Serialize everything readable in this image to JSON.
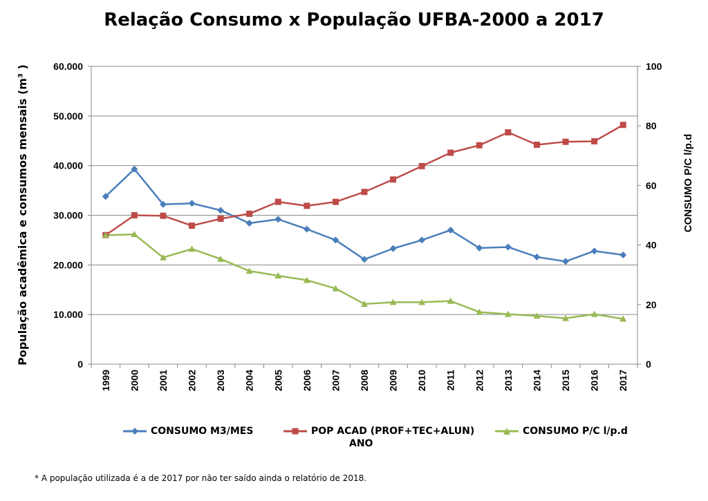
{
  "title": "Relação Consumo x População UFBA-2000 a 2017",
  "footnote": "* A população utilizada é a de 2017 por não ter saído ainda o relatório de 2018.",
  "chart_data": {
    "type": "line",
    "title": "Relação Consumo x População UFBA-2000 a 2017",
    "xlabel": "ANO",
    "ylabel": "População acadêmica e consumos mensais  (m³ )",
    "y2label": "CONSUMO P/C l/p.d",
    "categories": [
      "1999",
      "2000",
      "2001",
      "2002",
      "2003",
      "2004",
      "2005",
      "2006",
      "2007",
      "2008",
      "2009",
      "2010",
      "2011",
      "2012",
      "2013",
      "2014",
      "2015",
      "2016",
      "2017"
    ],
    "ylim": [
      0,
      60000
    ],
    "y2lim": [
      0,
      100
    ],
    "yticks": [
      "0",
      "10.000",
      "20.000",
      "30.000",
      "40.000",
      "50.000",
      "60.000"
    ],
    "y2ticks": [
      "0",
      "20",
      "40",
      "60",
      "80",
      "100"
    ],
    "grid": true,
    "legend_position": "bottom",
    "series": [
      {
        "name": "CONSUMO M3/MES",
        "axis": "left",
        "color": "#4A7EBB",
        "marker": "diamond",
        "values": [
          33800,
          39300,
          32200,
          32400,
          31000,
          28400,
          29200,
          27200,
          25000,
          21100,
          23300,
          25000,
          27000,
          23400,
          23600,
          21600,
          20700,
          22800,
          22000
        ]
      },
      {
        "name": "POP ACAD (PROF+TEC+ALUN)",
        "axis": "left",
        "color": "#BE4B48",
        "marker": "square",
        "values": [
          26000,
          30000,
          29900,
          27900,
          29300,
          30300,
          32700,
          31900,
          32700,
          34700,
          37200,
          39900,
          42600,
          44100,
          46700,
          44200,
          44800,
          44900,
          48200
        ]
      },
      {
        "name": "CONSUMO P/C l/p.d",
        "axis": "right",
        "color": "#98B954",
        "marker": "triangle",
        "values": [
          43.3,
          43.6,
          35.8,
          38.7,
          35.3,
          31.3,
          29.7,
          28.2,
          25.4,
          20.2,
          20.8,
          20.8,
          21.2,
          17.5,
          16.8,
          16.2,
          15.4,
          16.8,
          15.2
        ]
      }
    ]
  }
}
